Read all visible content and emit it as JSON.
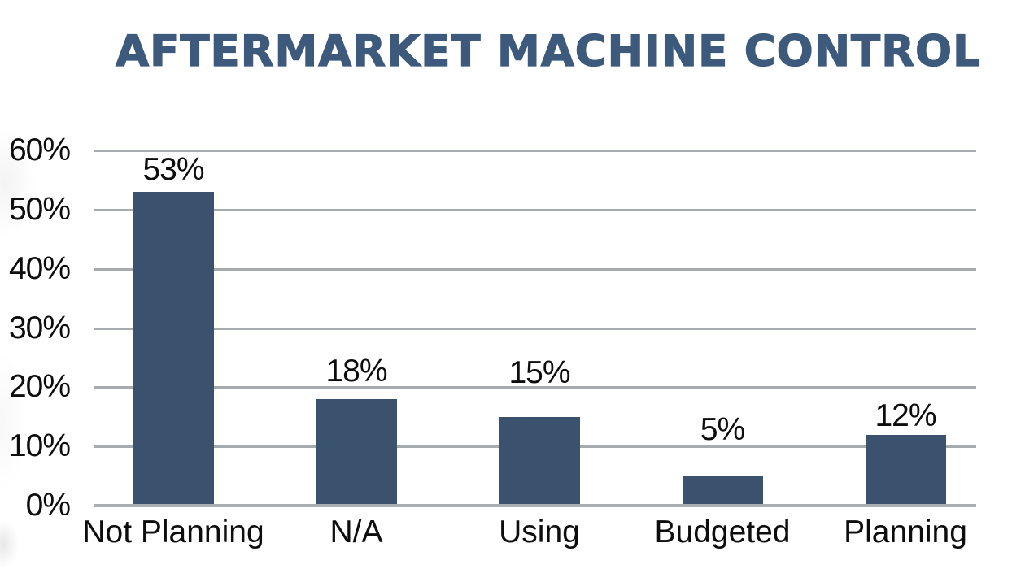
{
  "chart_data": {
    "type": "bar",
    "title": "AFTERMARKET MACHINE CONTROL",
    "categories": [
      "Not Planning",
      "N/A",
      "Using",
      "Budgeted",
      "Planning"
    ],
    "values": [
      53,
      18,
      15,
      5,
      12
    ],
    "data_labels": [
      "53%",
      "18%",
      "15%",
      "5%",
      "12%"
    ],
    "y_ticks": [
      "0%",
      "10%",
      "20%",
      "30%",
      "40%",
      "50%",
      "60%"
    ],
    "y_tick_values": [
      0,
      10,
      20,
      30,
      40,
      50,
      60
    ],
    "ylim": [
      0,
      60
    ],
    "xlabel": "",
    "ylabel": "",
    "legend": "none",
    "grid": "horizontal",
    "colors": {
      "bar": "#3b526f",
      "gridline": "#a5abae",
      "baseline": "#abafb2",
      "title": "#3d5a7d",
      "text": "#0d0d0d",
      "background": "#ffffff"
    }
  }
}
